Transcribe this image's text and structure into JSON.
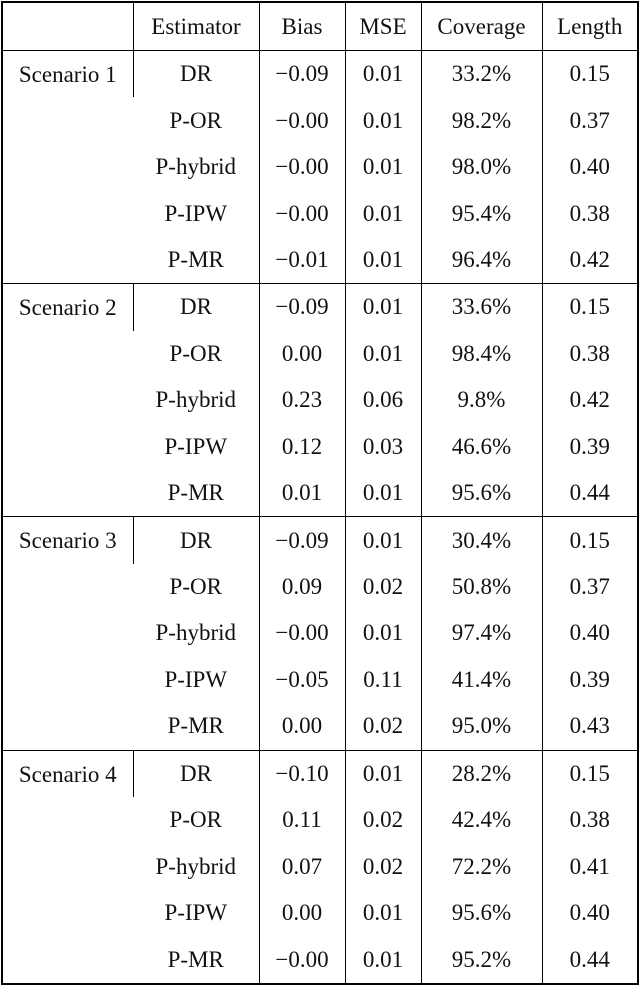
{
  "table": {
    "columns": [
      "",
      "Estimator",
      "Bias",
      "MSE",
      "Coverage",
      "Length"
    ],
    "scenarios": [
      {
        "label": "Scenario 1",
        "rows": [
          {
            "estimator": "DR",
            "bias": "−0.09",
            "mse": "0.01",
            "coverage": "33.2%",
            "length": "0.15"
          },
          {
            "estimator": "P-OR",
            "bias": "−0.00",
            "mse": "0.01",
            "coverage": "98.2%",
            "length": "0.37"
          },
          {
            "estimator": "P-hybrid",
            "bias": "−0.00",
            "mse": "0.01",
            "coverage": "98.0%",
            "length": "0.40"
          },
          {
            "estimator": "P-IPW",
            "bias": "−0.00",
            "mse": "0.01",
            "coverage": "95.4%",
            "length": "0.38"
          },
          {
            "estimator": "P-MR",
            "bias": "−0.01",
            "mse": "0.01",
            "coverage": "96.4%",
            "length": "0.42"
          }
        ]
      },
      {
        "label": "Scenario 2",
        "rows": [
          {
            "estimator": "DR",
            "bias": "−0.09",
            "mse": "0.01",
            "coverage": "33.6%",
            "length": "0.15"
          },
          {
            "estimator": "P-OR",
            "bias": "0.00",
            "mse": "0.01",
            "coverage": "98.4%",
            "length": "0.38"
          },
          {
            "estimator": "P-hybrid",
            "bias": "0.23",
            "mse": "0.06",
            "coverage": "9.8%",
            "length": "0.42"
          },
          {
            "estimator": "P-IPW",
            "bias": "0.12",
            "mse": "0.03",
            "coverage": "46.6%",
            "length": "0.39"
          },
          {
            "estimator": "P-MR",
            "bias": "0.01",
            "mse": "0.01",
            "coverage": "95.6%",
            "length": "0.44"
          }
        ]
      },
      {
        "label": "Scenario 3",
        "rows": [
          {
            "estimator": "DR",
            "bias": "−0.09",
            "mse": "0.01",
            "coverage": "30.4%",
            "length": "0.15"
          },
          {
            "estimator": "P-OR",
            "bias": "0.09",
            "mse": "0.02",
            "coverage": "50.8%",
            "length": "0.37"
          },
          {
            "estimator": "P-hybrid",
            "bias": "−0.00",
            "mse": "0.01",
            "coverage": "97.4%",
            "length": "0.40"
          },
          {
            "estimator": "P-IPW",
            "bias": "−0.05",
            "mse": "0.11",
            "coverage": "41.4%",
            "length": "0.39"
          },
          {
            "estimator": "P-MR",
            "bias": "0.00",
            "mse": "0.02",
            "coverage": "95.0%",
            "length": "0.43"
          }
        ]
      },
      {
        "label": "Scenario 4",
        "rows": [
          {
            "estimator": "DR",
            "bias": "−0.10",
            "mse": "0.01",
            "coverage": "28.2%",
            "length": "0.15"
          },
          {
            "estimator": "P-OR",
            "bias": "0.11",
            "mse": "0.02",
            "coverage": "42.4%",
            "length": "0.38"
          },
          {
            "estimator": "P-hybrid",
            "bias": "0.07",
            "mse": "0.02",
            "coverage": "72.2%",
            "length": "0.41"
          },
          {
            "estimator": "P-IPW",
            "bias": "0.00",
            "mse": "0.01",
            "coverage": "95.6%",
            "length": "0.40"
          },
          {
            "estimator": "P-MR",
            "bias": "−0.00",
            "mse": "0.01",
            "coverage": "95.2%",
            "length": "0.44"
          }
        ]
      }
    ]
  },
  "colors": {
    "text": "#111111",
    "rule": "#000000",
    "background": "#ffffff"
  }
}
